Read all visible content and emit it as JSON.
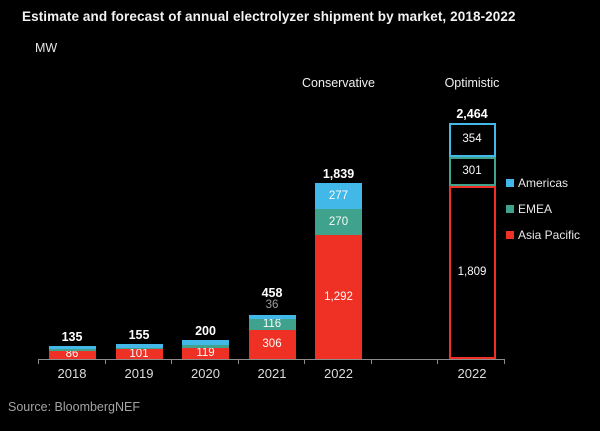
{
  "title": "Estimate and forecast of annual electrolyzer shipment by market, 2018-2022",
  "unit_label": "MW",
  "source": "Source: BloombergNEF",
  "legend": {
    "items": [
      {
        "key": "americas",
        "label": "Americas",
        "color": "#41b8e8"
      },
      {
        "key": "emea",
        "label": "EMEA",
        "color": "#3ea28d"
      },
      {
        "key": "asia_pacific",
        "label": "Asia Pacific",
        "color": "#ee3124"
      }
    ]
  },
  "chart_data": {
    "type": "bar",
    "stacked": true,
    "unit": "MW",
    "title": "Estimate and forecast of annual electrolyzer shipment by market, 2018-2022",
    "ylabel": "MW",
    "grid": false,
    "legend_position": "right",
    "categories": [
      "2018",
      "2019",
      "2020",
      "2021",
      "2022",
      "2022"
    ],
    "scenario_labels": [
      "Conservative",
      "Optimistic"
    ],
    "bars": [
      {
        "category": "2018",
        "slot": 0,
        "style": "filled",
        "total": 135,
        "total_label": "135",
        "segments": [
          {
            "market": "asia_pacific",
            "value": 86,
            "label": "86"
          },
          {
            "market": "emea",
            "value": 15,
            "label": null,
            "estimated": true
          },
          {
            "market": "americas",
            "value": 34,
            "label": null,
            "estimated": true
          }
        ]
      },
      {
        "category": "2019",
        "slot": 1,
        "style": "filled",
        "total": 155,
        "total_label": "155",
        "segments": [
          {
            "market": "asia_pacific",
            "value": 101,
            "label": "101"
          },
          {
            "market": "emea",
            "value": 16,
            "label": null,
            "estimated": true
          },
          {
            "market": "americas",
            "value": 38,
            "label": null,
            "estimated": true
          }
        ]
      },
      {
        "category": "2020",
        "slot": 2,
        "style": "filled",
        "total": 200,
        "total_label": "200",
        "segments": [
          {
            "market": "asia_pacific",
            "value": 119,
            "label": "119"
          },
          {
            "market": "emea",
            "value": 24,
            "label": null,
            "estimated": true
          },
          {
            "market": "americas",
            "value": 57,
            "label": null,
            "estimated": true
          }
        ]
      },
      {
        "category": "2021",
        "slot": 3,
        "style": "filled",
        "total": 458,
        "total_label": "458",
        "segments": [
          {
            "market": "asia_pacific",
            "value": 306,
            "label": "306"
          },
          {
            "market": "emea",
            "value": 116,
            "label": "116"
          },
          {
            "market": "americas",
            "value": 36,
            "label": "36",
            "label_position": "outside"
          }
        ]
      },
      {
        "category": "2022",
        "slot": 4,
        "style": "filled",
        "scenario": "Conservative",
        "total": 1839,
        "total_label": "1,839",
        "segments": [
          {
            "market": "asia_pacific",
            "value": 1292,
            "label": "1,292"
          },
          {
            "market": "emea",
            "value": 270,
            "label": "270"
          },
          {
            "market": "americas",
            "value": 277,
            "label": "277"
          }
        ]
      },
      {
        "category": "2022",
        "slot": 6,
        "style": "outlined",
        "scenario": "Optimistic",
        "total": 2464,
        "total_label": "2,464",
        "segments": [
          {
            "market": "asia_pacific",
            "value": 1809,
            "label": "1,809"
          },
          {
            "market": "emea",
            "value": 301,
            "label": "301"
          },
          {
            "market": "americas",
            "value": 354,
            "label": "354"
          }
        ]
      }
    ]
  }
}
